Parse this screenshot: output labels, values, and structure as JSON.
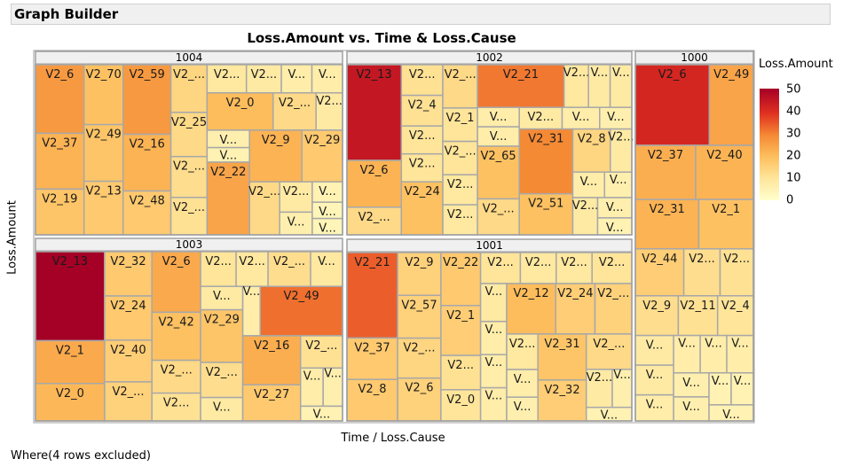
{
  "window": {
    "title": "Graph Builder"
  },
  "footer": {
    "text": "Where(4 rows excluded)"
  },
  "chart_data": {
    "type": "treemap",
    "title": "Loss.Amount vs. Time & Loss.Cause",
    "xlabel": "Time / Loss.Cause",
    "ylabel": "Loss.Amount",
    "legend": {
      "title": "Loss.Amount",
      "ticks": [
        50,
        40,
        30,
        20,
        10,
        0
      ],
      "range": [
        0,
        50
      ],
      "placement": "right"
    },
    "groups": [
      {
        "name": "1004",
        "cells": [
          {
            "label": "V2_6",
            "value": 27
          },
          {
            "label": "V2_37",
            "value": 22
          },
          {
            "label": "V2_19",
            "value": 18
          },
          {
            "label": "V2_70",
            "value": 19
          },
          {
            "label": "V2_49",
            "value": 18
          },
          {
            "label": "V2_13",
            "value": 17
          },
          {
            "label": "V2_59",
            "value": 27
          },
          {
            "label": "V2_16",
            "value": 22
          },
          {
            "label": "V2_48",
            "value": 17
          },
          {
            "label": "V2_...",
            "value": 14
          },
          {
            "label": "V2_25",
            "value": 13
          },
          {
            "label": "V2_...",
            "value": 12
          },
          {
            "label": "V2_...",
            "value": 11
          },
          {
            "label": "V2...",
            "value": 9
          },
          {
            "label": "V2...",
            "value": 8
          },
          {
            "label": "V...",
            "value": 7
          },
          {
            "label": "V...",
            "value": 7
          },
          {
            "label": "V2_0",
            "value": 20
          },
          {
            "label": "V2_...",
            "value": 13
          },
          {
            "label": "V2...",
            "value": 8
          },
          {
            "label": "V...",
            "value": 6
          },
          {
            "label": "V...",
            "value": 5
          },
          {
            "label": "V2_22",
            "value": 25
          },
          {
            "label": "V2_9",
            "value": 22
          },
          {
            "label": "V2_29",
            "value": 17
          },
          {
            "label": "V2_...",
            "value": 13
          },
          {
            "label": "V2...",
            "value": 8
          },
          {
            "label": "V...",
            "value": 6
          },
          {
            "label": "V...",
            "value": 5
          },
          {
            "label": "V...",
            "value": 4
          },
          {
            "label": "V...",
            "value": 4
          }
        ]
      },
      {
        "name": "1002",
        "cells": [
          {
            "label": "V2_13",
            "value": 45
          },
          {
            "label": "V2_6",
            "value": 22
          },
          {
            "label": "V2_...",
            "value": 13
          },
          {
            "label": "V2...",
            "value": 11
          },
          {
            "label": "V2_4",
            "value": 11
          },
          {
            "label": "V2...",
            "value": 10
          },
          {
            "label": "V2...",
            "value": 10
          },
          {
            "label": "V2_24",
            "value": 19
          },
          {
            "label": "V2_...",
            "value": 13
          },
          {
            "label": "V2_1",
            "value": 10
          },
          {
            "label": "V2_...",
            "value": 10
          },
          {
            "label": "V2...",
            "value": 9
          },
          {
            "label": "V2...",
            "value": 9
          },
          {
            "label": "V2_21",
            "value": 32
          },
          {
            "label": "V2...",
            "value": 9
          },
          {
            "label": "V...",
            "value": 8
          },
          {
            "label": "V...",
            "value": 8
          },
          {
            "label": "V...",
            "value": 7
          },
          {
            "label": "V...",
            "value": 7
          },
          {
            "label": "V2_65",
            "value": 19
          },
          {
            "label": "V2_...",
            "value": 13
          },
          {
            "label": "V2...",
            "value": 8
          },
          {
            "label": "V...",
            "value": 7
          },
          {
            "label": "V...",
            "value": 6
          },
          {
            "label": "V2_31",
            "value": 30
          },
          {
            "label": "V2_51",
            "value": 19
          },
          {
            "label": "V2_8",
            "value": 14
          },
          {
            "label": "V2...",
            "value": 8
          },
          {
            "label": "V...",
            "value": 7
          },
          {
            "label": "V...",
            "value": 6
          },
          {
            "label": "V2...",
            "value": 8
          },
          {
            "label": "V...",
            "value": 6
          },
          {
            "label": "V...",
            "value": 5
          }
        ]
      },
      {
        "name": "1000",
        "cells": [
          {
            "label": "V2_6",
            "value": 42
          },
          {
            "label": "V2_49",
            "value": 25
          },
          {
            "label": "V2_37",
            "value": 23
          },
          {
            "label": "V2_40",
            "value": 22
          },
          {
            "label": "V2_31",
            "value": 22
          },
          {
            "label": "V2_1",
            "value": 19
          },
          {
            "label": "V2_44",
            "value": 16
          },
          {
            "label": "V2...",
            "value": 12
          },
          {
            "label": "V2...",
            "value": 11
          },
          {
            "label": "V2_9",
            "value": 12
          },
          {
            "label": "V2_11",
            "value": 11
          },
          {
            "label": "V2_4",
            "value": 10
          },
          {
            "label": "V...",
            "value": 8
          },
          {
            "label": "V...",
            "value": 8
          },
          {
            "label": "V...",
            "value": 7
          },
          {
            "label": "V...",
            "value": 7
          },
          {
            "label": "V...",
            "value": 7
          },
          {
            "label": "V...",
            "value": 7
          },
          {
            "label": "V...",
            "value": 6
          },
          {
            "label": "V...",
            "value": 6
          },
          {
            "label": "V...",
            "value": 5
          },
          {
            "label": "V...",
            "value": 5
          },
          {
            "label": "V...",
            "value": 5
          }
        ]
      },
      {
        "name": "1003",
        "cells": [
          {
            "label": "V2_13",
            "value": 50
          },
          {
            "label": "V2_1",
            "value": 24
          },
          {
            "label": "V2_0",
            "value": 21
          },
          {
            "label": "V2_32",
            "value": 17
          },
          {
            "label": "V2_24",
            "value": 17
          },
          {
            "label": "V2_40",
            "value": 16
          },
          {
            "label": "V2_...",
            "value": 15
          },
          {
            "label": "V2_6",
            "value": 24
          },
          {
            "label": "V2_42",
            "value": 19
          },
          {
            "label": "V2_...",
            "value": 13
          },
          {
            "label": "V2...",
            "value": 11
          },
          {
            "label": "V2...",
            "value": 10
          },
          {
            "label": "V2...",
            "value": 9
          },
          {
            "label": "V2_...",
            "value": 12
          },
          {
            "label": "V...",
            "value": 9
          },
          {
            "label": "V...",
            "value": 8
          },
          {
            "label": "V2_29",
            "value": 18
          },
          {
            "label": "V2_...",
            "value": 12
          },
          {
            "label": "V...",
            "value": 8
          },
          {
            "label": "V...",
            "value": 7
          },
          {
            "label": "V2_49",
            "value": 33
          },
          {
            "label": "V2_16",
            "value": 23
          },
          {
            "label": "V2_27",
            "value": 17
          },
          {
            "label": "V2_...",
            "value": 11
          },
          {
            "label": "V...",
            "value": 7
          },
          {
            "label": "V...",
            "value": 6
          },
          {
            "label": "V...",
            "value": 5
          }
        ]
      },
      {
        "name": "1001",
        "cells": [
          {
            "label": "V2_21",
            "value": 35
          },
          {
            "label": "V2_37",
            "value": 17
          },
          {
            "label": "V2_8",
            "value": 17
          },
          {
            "label": "V2_9",
            "value": 15
          },
          {
            "label": "V2_57",
            "value": 15
          },
          {
            "label": "V2_...",
            "value": 14
          },
          {
            "label": "V2_6",
            "value": 15
          },
          {
            "label": "V2_22",
            "value": 17
          },
          {
            "label": "V2_1",
            "value": 16
          },
          {
            "label": "V2...",
            "value": 11
          },
          {
            "label": "V2_0",
            "value": 10
          },
          {
            "label": "V2...",
            "value": 10
          },
          {
            "label": "V2...",
            "value": 9
          },
          {
            "label": "V2...",
            "value": 9
          },
          {
            "label": "V2...",
            "value": 10
          },
          {
            "label": "V...",
            "value": 8
          },
          {
            "label": "V...",
            "value": 7
          },
          {
            "label": "V...",
            "value": 7
          },
          {
            "label": "V...",
            "value": 7
          },
          {
            "label": "V2_12",
            "value": 20
          },
          {
            "label": "V2_24",
            "value": 16
          },
          {
            "label": "V2_...",
            "value": 15
          },
          {
            "label": "V2...",
            "value": 9
          },
          {
            "label": "V...",
            "value": 7
          },
          {
            "label": "V...",
            "value": 6
          },
          {
            "label": "V2_31",
            "value": 18
          },
          {
            "label": "V2_32",
            "value": 16
          },
          {
            "label": "V2_...",
            "value": 13
          },
          {
            "label": "V2...",
            "value": 8
          },
          {
            "label": "V...",
            "value": 6
          },
          {
            "label": "V...",
            "value": 5
          }
        ]
      }
    ]
  }
}
